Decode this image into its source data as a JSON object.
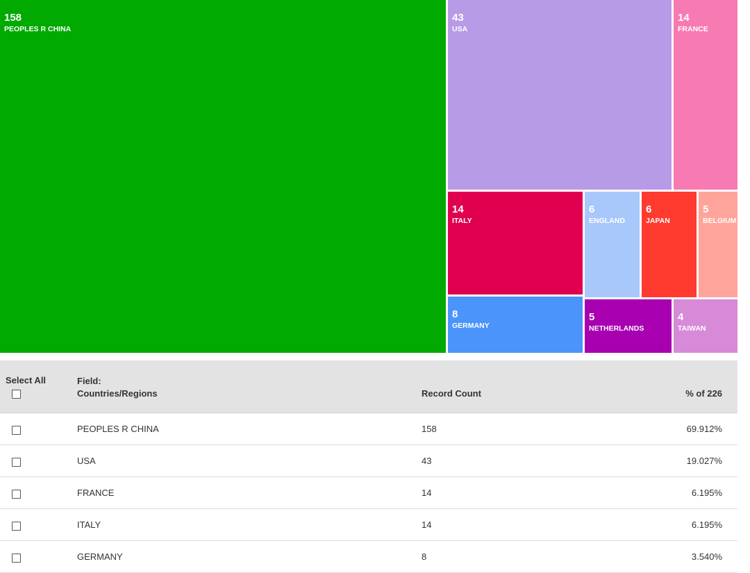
{
  "chart_data": {
    "type": "treemap",
    "items": [
      {
        "label": "PEOPLES R CHINA",
        "value": 158,
        "color": "#00aa00"
      },
      {
        "label": "USA",
        "value": 43,
        "color": "#b89be6"
      },
      {
        "label": "FRANCE",
        "value": 14,
        "color": "#f77ab3"
      },
      {
        "label": "ITALY",
        "value": 14,
        "color": "#e0004f"
      },
      {
        "label": "ENGLAND",
        "value": 6,
        "color": "#a8c8fc"
      },
      {
        "label": "JAPAN",
        "value": 6,
        "color": "#ff3b2f"
      },
      {
        "label": "BELGIUM",
        "value": 5,
        "color": "#ffa49a"
      },
      {
        "label": "GERMANY",
        "value": 8,
        "color": "#4a94fb"
      },
      {
        "label": "NETHERLANDS",
        "value": 5,
        "color": "#a800b0"
      },
      {
        "label": "TAIWAN",
        "value": 4,
        "color": "#d68ad8"
      }
    ]
  },
  "table": {
    "headers": {
      "select_all": "Select All",
      "field_line1": "Field:",
      "field_line2": "Countries/Regions",
      "record_count": "Record Count",
      "percent": "% of 226"
    },
    "rows": [
      {
        "name": "PEOPLES R CHINA",
        "count": "158",
        "pct": "69.912%"
      },
      {
        "name": "USA",
        "count": "43",
        "pct": "19.027%"
      },
      {
        "name": "FRANCE",
        "count": "14",
        "pct": "6.195%"
      },
      {
        "name": "ITALY",
        "count": "14",
        "pct": "6.195%"
      },
      {
        "name": "GERMANY",
        "count": "8",
        "pct": "3.540%"
      }
    ]
  }
}
